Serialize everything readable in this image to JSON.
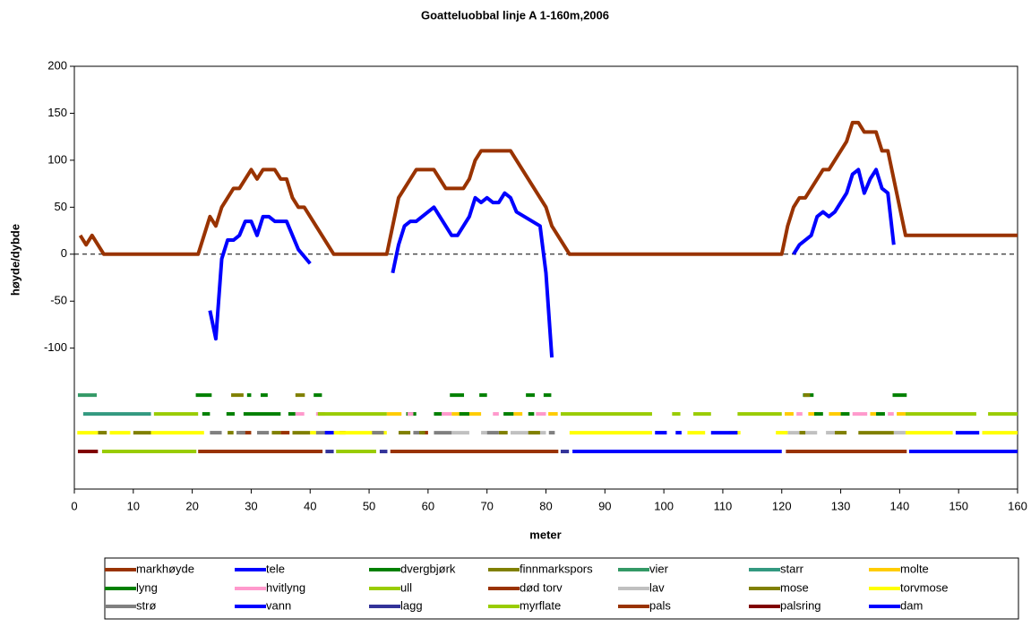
{
  "chart_data": {
    "type": "line",
    "title": "Goatteluobbal linje A 1-160m,2006",
    "xlabel": "meter",
    "ylabel": "høyde/dybde",
    "xlim": [
      0,
      160
    ],
    "xticks": [
      0,
      10,
      20,
      30,
      40,
      50,
      60,
      70,
      80,
      90,
      100,
      110,
      120,
      130,
      140,
      150,
      160
    ],
    "ylim": [
      -250,
      200
    ],
    "yticks": [
      200,
      150,
      100,
      50,
      0,
      -50,
      -100
    ],
    "hline": 0,
    "series": [
      {
        "name": "markhøyde",
        "color": "#993300",
        "x": [
          1,
          2,
          3,
          5,
          21,
          23,
          24,
          25,
          27,
          28,
          30,
          31,
          32,
          34,
          35,
          36,
          37,
          38,
          39,
          44,
          53,
          55,
          58,
          61,
          63,
          66,
          67,
          68,
          69,
          74,
          75,
          80,
          81,
          84,
          120,
          121,
          122,
          123,
          124,
          127,
          128,
          131,
          132,
          133,
          134,
          136,
          137,
          138,
          139,
          141,
          160
        ],
        "values": [
          20,
          10,
          20,
          0,
          0,
          40,
          30,
          50,
          70,
          70,
          90,
          80,
          90,
          90,
          80,
          80,
          60,
          50,
          50,
          0,
          0,
          60,
          90,
          90,
          70,
          70,
          80,
          100,
          110,
          110,
          100,
          50,
          30,
          0,
          0,
          30,
          50,
          60,
          60,
          90,
          90,
          120,
          140,
          140,
          130,
          130,
          110,
          110,
          80,
          20,
          20
        ]
      },
      {
        "name": "tele",
        "color": "#0000ff",
        "x": [
          23,
          24,
          25,
          26,
          27,
          28,
          29,
          30,
          31,
          32,
          33,
          34,
          36,
          38,
          40,
          47,
          54,
          55,
          56,
          57,
          58,
          61,
          64,
          65,
          67,
          68,
          69,
          70,
          71,
          72,
          73,
          74,
          75,
          79,
          80,
          81,
          100,
          122,
          123,
          125,
          126,
          127,
          128,
          129,
          131,
          132,
          133,
          134,
          135,
          136,
          137,
          138,
          139
        ],
        "values": [
          -60,
          -90,
          -5,
          15,
          15,
          20,
          35,
          35,
          20,
          40,
          40,
          35,
          35,
          5,
          -10,
          null,
          -20,
          10,
          30,
          35,
          35,
          50,
          20,
          20,
          40,
          60,
          55,
          60,
          55,
          55,
          65,
          60,
          45,
          30,
          -20,
          -110,
          null,
          0,
          10,
          20,
          40,
          45,
          40,
          45,
          65,
          85,
          90,
          65,
          80,
          90,
          70,
          65,
          10
        ]
      },
      {
        "name": "dvergbjørk",
        "color": "#008000",
        "level": -150,
        "segments": [
          [
            20.6,
            23.3
          ],
          [
            29.3,
            30
          ],
          [
            31.6,
            32.8
          ],
          [
            40.6,
            42
          ],
          [
            63.7,
            66.1
          ],
          [
            68.7,
            70
          ],
          [
            76.6,
            78.1
          ],
          [
            79.6,
            80.9
          ],
          [
            123.6,
            125.4
          ],
          [
            138.8,
            141.2
          ]
        ]
      },
      {
        "name": "finnmarkspors",
        "color": "#808000",
        "level": -150,
        "segments": [
          [
            26.6,
            28.7
          ],
          [
            37.5,
            39.1
          ],
          [
            123.7,
            124.8
          ]
        ]
      },
      {
        "name": "vier",
        "color": "#339966",
        "level": -150,
        "segments": [
          [
            0.6,
            3.8
          ]
        ]
      },
      {
        "name": "starr",
        "color": "#339980",
        "level": -170,
        "segments": [
          [
            1.5,
            13
          ]
        ]
      },
      {
        "name": "molte",
        "color": "#ffcc00",
        "level": -170,
        "segments": [
          [
            53,
            55.5
          ],
          [
            64,
            69
          ],
          [
            74.5,
            76
          ],
          [
            80.4,
            82
          ],
          [
            120.5,
            122
          ],
          [
            124.5,
            126
          ],
          [
            128,
            130
          ],
          [
            135,
            136
          ],
          [
            139.5,
            141
          ]
        ]
      },
      {
        "name": "lyng",
        "color": "#008000",
        "level": -170,
        "segments": [
          [
            21.7,
            23
          ],
          [
            25.8,
            27.2
          ],
          [
            28.7,
            35
          ],
          [
            36.3,
            37.5
          ],
          [
            56.3,
            58
          ],
          [
            61,
            62.5
          ],
          [
            65.3,
            67
          ],
          [
            72.8,
            74.5
          ],
          [
            77,
            78
          ],
          [
            125.5,
            127
          ],
          [
            130,
            131.5
          ],
          [
            136,
            137.5
          ]
        ]
      },
      {
        "name": "hvitlyng",
        "color": "#ff99cc",
        "level": -170,
        "segments": [
          [
            37.5,
            39
          ],
          [
            41,
            42.5
          ],
          [
            56.5,
            57.5
          ],
          [
            62.3,
            64
          ],
          [
            71,
            72
          ],
          [
            78.3,
            80
          ],
          [
            122.5,
            123.5
          ],
          [
            132,
            134.5
          ],
          [
            138,
            139
          ]
        ]
      },
      {
        "name": "ull",
        "color": "#99cc00",
        "level": -170,
        "segments": [
          [
            13.5,
            21
          ],
          [
            41.3,
            53
          ],
          [
            82.5,
            98
          ],
          [
            101.4,
            102.8
          ],
          [
            105,
            108
          ],
          [
            112.5,
            120
          ],
          [
            141,
            153
          ],
          [
            155,
            160
          ]
        ]
      },
      {
        "name": "død torv",
        "color": "#993300",
        "level": -190,
        "segments": [
          [
            28,
            30
          ],
          [
            35,
            36.5
          ],
          [
            45,
            46
          ],
          [
            59,
            60
          ]
        ]
      },
      {
        "name": "lav",
        "color": "#c0c0c0",
        "level": -190,
        "segments": [
          [
            64,
            67
          ],
          [
            69,
            70
          ],
          [
            74,
            80
          ],
          [
            121,
            126
          ],
          [
            127.5,
            129
          ],
          [
            139,
            141
          ]
        ]
      },
      {
        "name": "mose",
        "color": "#808000",
        "level": -190,
        "segments": [
          [
            4,
            5.5
          ],
          [
            10,
            13
          ],
          [
            26,
            27
          ],
          [
            33.5,
            35
          ],
          [
            37,
            40
          ],
          [
            55,
            57
          ],
          [
            58.5,
            59.5
          ],
          [
            72,
            73.5
          ],
          [
            77,
            79
          ],
          [
            123,
            124
          ],
          [
            129,
            131
          ],
          [
            133,
            139
          ]
        ]
      },
      {
        "name": "torvmose",
        "color": "#ffff00",
        "level": -190,
        "segments": [
          [
            0.5,
            4
          ],
          [
            6,
            9.5
          ],
          [
            13,
            22
          ],
          [
            40,
            41
          ],
          [
            44,
            53
          ],
          [
            84,
            98
          ],
          [
            104,
            107
          ],
          [
            111,
            113
          ],
          [
            119,
            121
          ],
          [
            141,
            149
          ],
          [
            154,
            160
          ]
        ]
      },
      {
        "name": "strø",
        "color": "#808080",
        "level": -190,
        "segments": [
          [
            23,
            25
          ],
          [
            27.5,
            29
          ],
          [
            31,
            33
          ],
          [
            41,
            43.5
          ],
          [
            50.5,
            52.5
          ],
          [
            57.5,
            58.5
          ],
          [
            61,
            64
          ],
          [
            70,
            72
          ],
          [
            80.5,
            81.5
          ]
        ]
      },
      {
        "name": "vann",
        "color": "#0000ff",
        "level": -190,
        "segments": [
          [
            42.5,
            44
          ],
          [
            98.5,
            100.5
          ],
          [
            102,
            103
          ],
          [
            108,
            112.5
          ],
          [
            149.5,
            153.5
          ]
        ]
      },
      {
        "name": "lagg",
        "color": "#333399",
        "level": -210,
        "segments": [
          [
            42.6,
            44
          ],
          [
            51.8,
            53.1
          ],
          [
            82.5,
            83.9
          ]
        ]
      },
      {
        "name": "myrflate",
        "color": "#99cc00",
        "level": -210,
        "segments": [
          [
            4.7,
            20.7
          ],
          [
            44.4,
            51.2
          ]
        ]
      },
      {
        "name": "pals",
        "color": "#993300",
        "level": -210,
        "segments": [
          [
            21,
            42.1
          ],
          [
            53.6,
            82.1
          ],
          [
            120.7,
            141.2
          ]
        ]
      },
      {
        "name": "palsring",
        "color": "#800000",
        "level": -210,
        "segments": [
          [
            0.6,
            4
          ]
        ]
      },
      {
        "name": "dam",
        "color": "#0000ff",
        "level": -210,
        "segments": [
          [
            84.5,
            120
          ],
          [
            141.6,
            160
          ]
        ]
      }
    ]
  }
}
